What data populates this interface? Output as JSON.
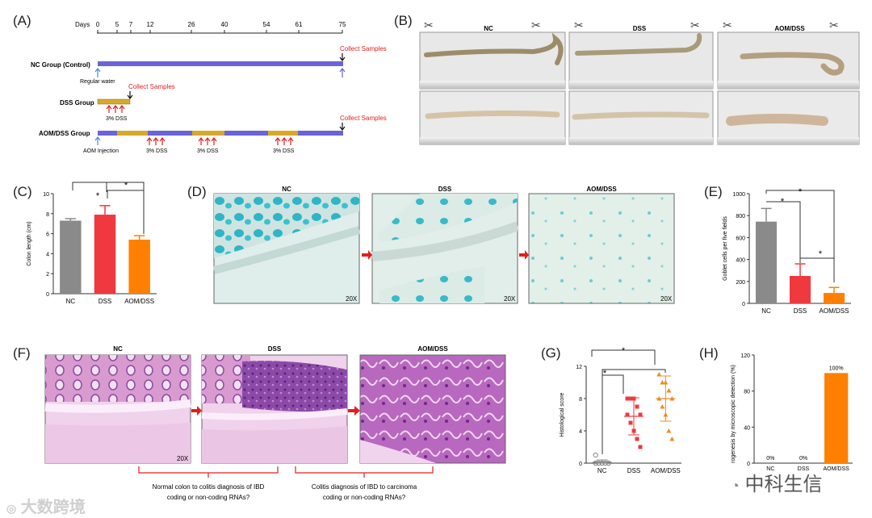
{
  "panelA": {
    "label": "(A)",
    "days_label": "Days",
    "ticks": [
      "0",
      "5",
      "7",
      "12",
      "26",
      "40",
      "54",
      "61",
      "75"
    ],
    "nc_group": "NC Group (Control)",
    "dss_group": "DSS Group",
    "aom_group": "AOM/DSS Group",
    "regular_water": "Regular water",
    "collect": "Collect Samples",
    "dss3": "3% DSS",
    "aom_injection": "AOM Injection"
  },
  "panelB": {
    "label": "(B)",
    "groups": [
      "NC",
      "DSS",
      "AOM/DSS"
    ]
  },
  "panelC": {
    "label": "(C)",
    "ylabel": "Colon length (cm)",
    "yticks": [
      "0",
      "2",
      "4",
      "6",
      "8",
      "10"
    ],
    "categories": [
      "NC",
      "DSS",
      "AOM/DSS"
    ],
    "star": "*"
  },
  "panelD": {
    "label": "(D)",
    "titles": [
      "NC",
      "DSS",
      "AOM/DSS"
    ],
    "mag": "20X"
  },
  "panelE": {
    "label": "(E)",
    "ylabel": "Goblet cells per five fields",
    "yticks": [
      "0",
      "200",
      "400",
      "600",
      "800",
      "1000"
    ],
    "categories": [
      "NC",
      "DSS",
      "AOM/DSS"
    ],
    "star": "*"
  },
  "panelF": {
    "label": "(F)",
    "titles": [
      "NC",
      "DSS",
      "AOM/DSS"
    ],
    "mag": "20X",
    "note1_line1": "Normal colon to colitis diagnosis of IBD",
    "note1_line2": "coding or non-coding RNAs?",
    "note2_line1": "Colitis diagnosis of IBD to carcinoma",
    "note2_line2": "coding or non-coding RNAs?"
  },
  "panelG": {
    "label": "(G)",
    "ylabel": "Histological score",
    "yticks": [
      "0",
      "4",
      "8",
      "12"
    ],
    "categories": [
      "NC",
      "DSS",
      "AOM/DSS"
    ],
    "star": "*"
  },
  "panelH": {
    "label": "(H)",
    "ylabel": "rogenesis by microscopic detection (%)",
    "yticks": [
      "0",
      "40",
      "80",
      "120"
    ],
    "categories": [
      "NC",
      "DSS",
      "AOM/DSS"
    ],
    "value_labels": [
      "0%",
      "0%",
      "100%"
    ]
  },
  "watermarks": {
    "left": "大数跨境",
    "right": "中科生信"
  },
  "colors": {
    "gray": "#8a8a8a",
    "red": "#f0393f",
    "orange": "#ff8000",
    "purple": "#6b63d8",
    "gold": "#d6a92a",
    "alcian": "#37b8c8",
    "he_pink": "#d88ac8",
    "he_purple": "#7a3a96"
  },
  "chart_data": [
    {
      "type": "bar",
      "panel": "C",
      "categories": [
        "NC",
        "DSS",
        "AOM/DSS"
      ],
      "values": [
        7.3,
        7.9,
        5.4
      ],
      "errors": [
        0.2,
        0.9,
        0.4
      ],
      "ylabel": "Colon length (cm)",
      "ylim": [
        0,
        10
      ]
    },
    {
      "type": "bar",
      "panel": "E",
      "categories": [
        "NC",
        "DSS",
        "AOM/DSS"
      ],
      "values": [
        745,
        250,
        95
      ],
      "errors": [
        120,
        110,
        50
      ],
      "ylabel": "Goblet cells per five fields",
      "ylim": [
        0,
        1000
      ]
    },
    {
      "type": "scatter",
      "panel": "G",
      "categories": [
        "NC",
        "DSS",
        "AOM/DSS"
      ],
      "series": [
        {
          "values": [
            0,
            0,
            0,
            0,
            0,
            0,
            0,
            0,
            0,
            0,
            1
          ]
        },
        {
          "values": [
            8,
            8,
            8,
            7,
            6,
            6,
            5,
            4,
            3,
            2
          ]
        },
        {
          "values": [
            11,
            10,
            10,
            9,
            8,
            8,
            7,
            6,
            4,
            3
          ]
        }
      ],
      "means": [
        0.1,
        5.8,
        8.0
      ],
      "sd": [
        0.3,
        2.3,
        2.8
      ],
      "ylabel": "Histological score",
      "ylim": [
        0,
        12
      ]
    },
    {
      "type": "bar",
      "panel": "H",
      "categories": [
        "NC",
        "DSS",
        "AOM/DSS"
      ],
      "values": [
        0,
        0,
        100
      ],
      "ylabel": "rogenesis by microscopic detection (%)",
      "ylim": [
        0,
        120
      ]
    }
  ]
}
